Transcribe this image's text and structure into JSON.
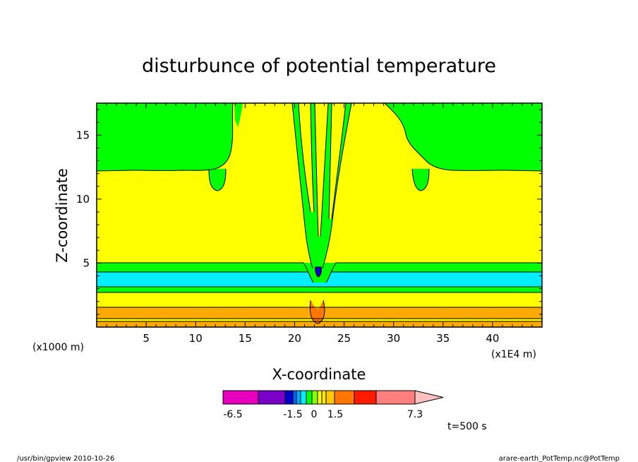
{
  "chart_data": {
    "type": "heatmap",
    "title": "disturbunce of potential temperature",
    "xlabel": "X-coordinate",
    "ylabel": "Z-coordinate",
    "xunit": "(x1E4 m)",
    "yunit": "(x1000 m)",
    "xlim": [
      0,
      45
    ],
    "ylim": [
      0,
      17.5
    ],
    "xticks": [
      5,
      10,
      15,
      20,
      25,
      30,
      35,
      40
    ],
    "yticks": [
      5,
      10,
      15
    ],
    "grid": false,
    "time_label": "t=500 s",
    "colorbar": {
      "tick_labels": [
        "-6.5",
        "-1.5",
        "0",
        "1.5",
        "7.3"
      ],
      "tick_values": [
        -6.5,
        -1.5,
        0,
        1.5,
        7.3
      ],
      "bins": [
        {
          "lo": -8.0,
          "hi": -6.5,
          "color": "#e600bd"
        },
        {
          "lo": -6.5,
          "hi": -4.0,
          "color": "#7a00c8"
        },
        {
          "lo": -4.0,
          "hi": -2.5,
          "color": "#0000c8"
        },
        {
          "lo": -2.5,
          "hi": -2.0,
          "color": "#0066ff"
        },
        {
          "lo": -2.0,
          "hi": -1.5,
          "color": "#00aaff"
        },
        {
          "lo": -1.5,
          "hi": -1.0,
          "color": "#00eeff"
        },
        {
          "lo": -1.0,
          "hi": -0.5,
          "color": "#00ff00"
        },
        {
          "lo": -0.5,
          "hi": 0.0,
          "color": "#88ff00"
        },
        {
          "lo": 0.0,
          "hi": 0.5,
          "color": "#ffff00"
        },
        {
          "lo": 0.5,
          "hi": 1.0,
          "color": "#ffe800"
        },
        {
          "lo": 1.0,
          "hi": 1.5,
          "color": "#ffc800"
        },
        {
          "lo": 1.5,
          "hi": 3.0,
          "color": "#ff7700"
        },
        {
          "lo": 3.0,
          "hi": 4.5,
          "color": "#ff1a00"
        },
        {
          "lo": 4.5,
          "hi": 7.3,
          "color": "#ff7f7f"
        },
        {
          "lo": 7.3,
          "hi": 9.0,
          "color": "#ffbfbf",
          "arrow": true
        }
      ]
    },
    "fields": {
      "background": "#ffff00",
      "upper_region": "#00ff00",
      "layer_cyan": "#00eeff",
      "layer_green": "#00ff00",
      "layer_yellow": "#ffff00",
      "layer_orange": "#ffaa00",
      "center_dark": "#0000c8",
      "center_orange": "#ff7700"
    }
  },
  "footer": {
    "left": "/usr/bin/gpview   2010-10-26",
    "right": "arare-earth_PotTemp.nc@PotTemp"
  }
}
